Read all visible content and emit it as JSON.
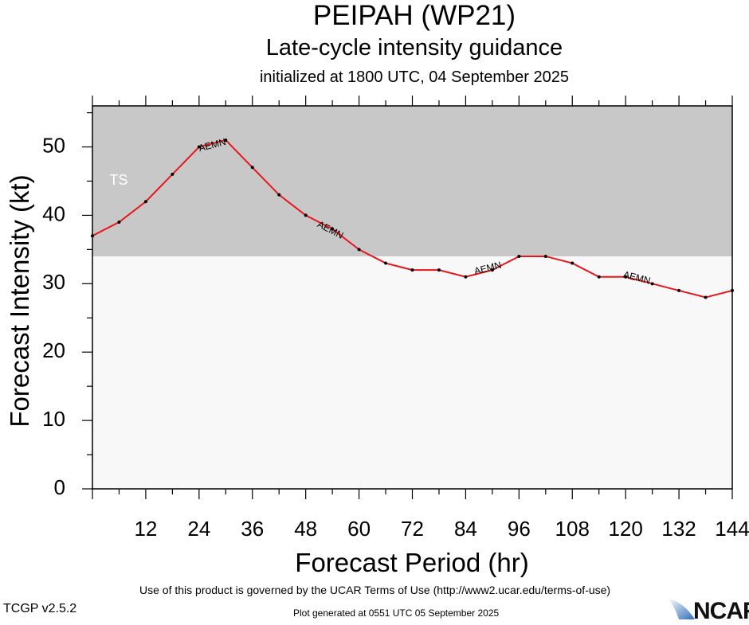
{
  "header": {
    "title": "PEIPAH (WP21)",
    "subtitle": "Late-cycle intensity guidance",
    "initialized": "initialized at 1800 UTC, 04 September 2025"
  },
  "footer": {
    "terms": "Use of this product is governed by the UCAR Terms of Use (http://www2.ucar.edu/terms-of-use)",
    "version": "TCGP v2.5.2",
    "generated": "Plot generated at 0551 UTC   05 September 2025",
    "logo_text": "NCAR"
  },
  "colors": {
    "ts_band": "#c8c8c8",
    "below_band": "#f8f8f8",
    "line": "#e8161b",
    "ts_label": "#ffffff"
  },
  "chart_data": {
    "type": "line",
    "title": "PEIPAH (WP21)",
    "xlabel": "Forecast Period (hr)",
    "ylabel": "Forecast Intensity (kt)",
    "xlim": [
      0,
      144
    ],
    "ylim": [
      0,
      56
    ],
    "xticks": [
      12,
      24,
      36,
      48,
      60,
      72,
      84,
      96,
      108,
      120,
      132,
      144
    ],
    "yticks": [
      0,
      10,
      20,
      30,
      40,
      50
    ],
    "bands": [
      {
        "label": "TS",
        "from": 34,
        "to": 56
      }
    ],
    "series": [
      {
        "name": "AEMN",
        "x": [
          0,
          6,
          12,
          18,
          24,
          30,
          36,
          42,
          48,
          54,
          60,
          66,
          72,
          78,
          84,
          90,
          96,
          102,
          108,
          114,
          120,
          126,
          132,
          138,
          144
        ],
        "values": [
          37,
          39,
          42,
          46,
          50,
          51,
          47,
          43,
          40,
          38,
          35,
          33,
          32,
          32,
          31,
          32,
          34,
          34,
          33,
          31,
          31,
          30,
          29,
          28,
          29
        ]
      }
    ],
    "series_labels": [
      {
        "text": "AEMN",
        "x": 27,
        "y": 50.2
      },
      {
        "text": "AEMN",
        "x": 53.5,
        "y": 37.8
      },
      {
        "text": "AEMN",
        "x": 89,
        "y": 32.2
      },
      {
        "text": "AEMN",
        "x": 122.5,
        "y": 30.8
      }
    ]
  }
}
